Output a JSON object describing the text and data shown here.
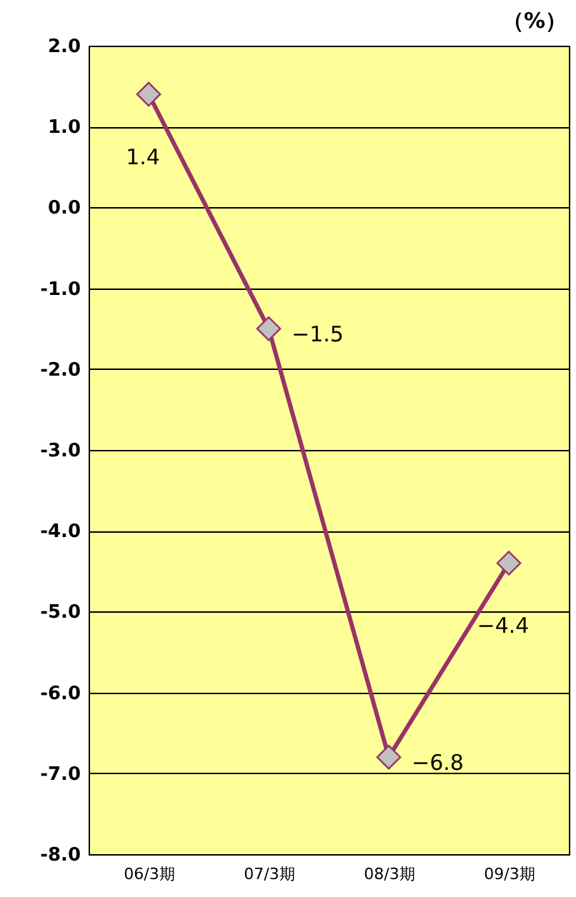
{
  "chart_data": {
    "type": "line",
    "ylabel": "（%）",
    "categories": [
      "06/3期",
      "07/3期",
      "08/3期",
      "09/3期"
    ],
    "series": [
      {
        "color": "#993366",
        "values": [
          1.4,
          -1.5,
          -6.8,
          -4.4
        ],
        "value_labels": [
          "1.4",
          "−1.5",
          "−6.8",
          "−4.4"
        ]
      }
    ],
    "ylim": [
      -8,
      2
    ],
    "yticks": [
      {
        "value": 2,
        "label": "2.0"
      },
      {
        "value": 1,
        "label": "1.0"
      },
      {
        "value": 0,
        "label": "0.0"
      },
      {
        "value": -1,
        "label": "-1.0"
      },
      {
        "value": -2,
        "label": "-2.0"
      },
      {
        "value": -3,
        "label": "-3.0"
      },
      {
        "value": -4,
        "label": "-4.0"
      },
      {
        "value": -5,
        "label": "-5.0"
      },
      {
        "value": -6,
        "label": "-6.0"
      },
      {
        "value": -7,
        "label": "-7.0"
      },
      {
        "value": -8,
        "label": "-8.0"
      }
    ],
    "grid": "y",
    "marker": "diamond",
    "line_style": "solid"
  }
}
